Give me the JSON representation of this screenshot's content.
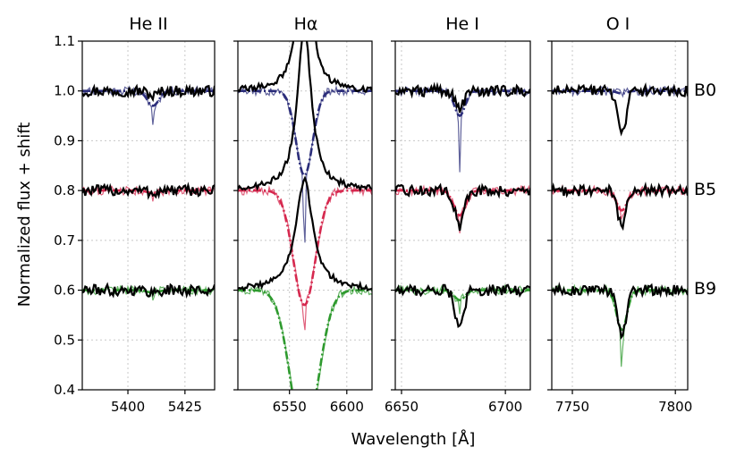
{
  "chart_data": {
    "type": "line",
    "ylabel": "Normalized flux + shift",
    "xlabel": "Wavelength [Å]",
    "ylim": [
      0.4,
      1.1
    ],
    "yticks": [
      "0.4",
      "0.5",
      "0.6",
      "0.7",
      "0.8",
      "0.9",
      "1.0",
      "1.1"
    ],
    "spectral_types": [
      {
        "label": "B0",
        "offset": 1.0,
        "color": "#2b2d7a"
      },
      {
        "label": "B5",
        "offset": 0.8,
        "color": "#d6294f"
      },
      {
        "label": "B9",
        "offset": 0.6,
        "color": "#2e9a2e"
      }
    ],
    "panels": [
      {
        "title": "He II",
        "xlim": [
          5380,
          5438
        ],
        "xticks": [
          5400,
          5425
        ],
        "xtick_labels": [
          "5400",
          "5425"
        ],
        "grid_x": [
          5400,
          5425
        ],
        "lines": [
          {
            "type": "B0",
            "center": 5411,
            "model_depth": 0.03,
            "obs_depth": 0.01,
            "width": 2.5,
            "spike": 0.04
          },
          {
            "type": "B5",
            "center": 5411,
            "model_depth": 0.005,
            "obs_depth": 0.005,
            "width": 2.5,
            "spike": 0.02
          },
          {
            "type": "B9",
            "center": 5411,
            "model_depth": 0.005,
            "obs_depth": 0.005,
            "width": 2.5,
            "spike": 0.02
          }
        ]
      },
      {
        "title": "Hα",
        "xlim": [
          6505,
          6622
        ],
        "xticks": [
          6550,
          6600
        ],
        "xtick_labels": [
          "6550",
          "6600"
        ],
        "grid_x": [
          6550,
          6600
        ],
        "lines": [
          {
            "type": "B0",
            "center": 6563,
            "model_depth": 0.17,
            "obs_depth": -0.2,
            "width": 6,
            "spike": 0.18
          },
          {
            "type": "B5",
            "center": 6563,
            "model_depth": 0.23,
            "obs_depth": -0.15,
            "width": 8,
            "spike": 0.06
          },
          {
            "type": "B9",
            "center": 6563,
            "model_depth": 0.3,
            "obs_depth": -0.1,
            "width": 10,
            "spike": 0.06
          }
        ]
      },
      {
        "title": "He I",
        "xlim": [
          6647,
          6712
        ],
        "xticks": [
          6650,
          6700
        ],
        "xtick_labels": [
          "6650",
          "6700"
        ],
        "grid_x": [
          6650,
          6700
        ],
        "lines": [
          {
            "type": "B0",
            "center": 6678,
            "model_depth": 0.05,
            "obs_depth": 0.035,
            "width": 2.5,
            "spike": 0.11
          },
          {
            "type": "B5",
            "center": 6678,
            "model_depth": 0.05,
            "obs_depth": 0.07,
            "width": 2.8,
            "spike": 0.03
          },
          {
            "type": "B9",
            "center": 6678,
            "model_depth": 0.02,
            "obs_depth": 0.08,
            "width": 2.5,
            "spike": 0.02
          }
        ]
      },
      {
        "title": "O I",
        "xlim": [
          7740,
          7806
        ],
        "xticks": [
          7750,
          7800
        ],
        "xtick_labels": [
          "7750",
          "7800"
        ],
        "grid_x": [
          7750,
          7800
        ],
        "lines": [
          {
            "type": "B0",
            "center": 7774,
            "model_depth": 0.005,
            "obs_depth": 0.09,
            "width": 2.5,
            "spike": 0.0
          },
          {
            "type": "B5",
            "center": 7774,
            "model_depth": 0.04,
            "obs_depth": 0.07,
            "width": 2.5,
            "spike": 0.02
          },
          {
            "type": "B9",
            "center": 7774,
            "model_depth": 0.08,
            "obs_depth": 0.09,
            "width": 2.5,
            "spike": 0.09
          }
        ]
      }
    ]
  }
}
